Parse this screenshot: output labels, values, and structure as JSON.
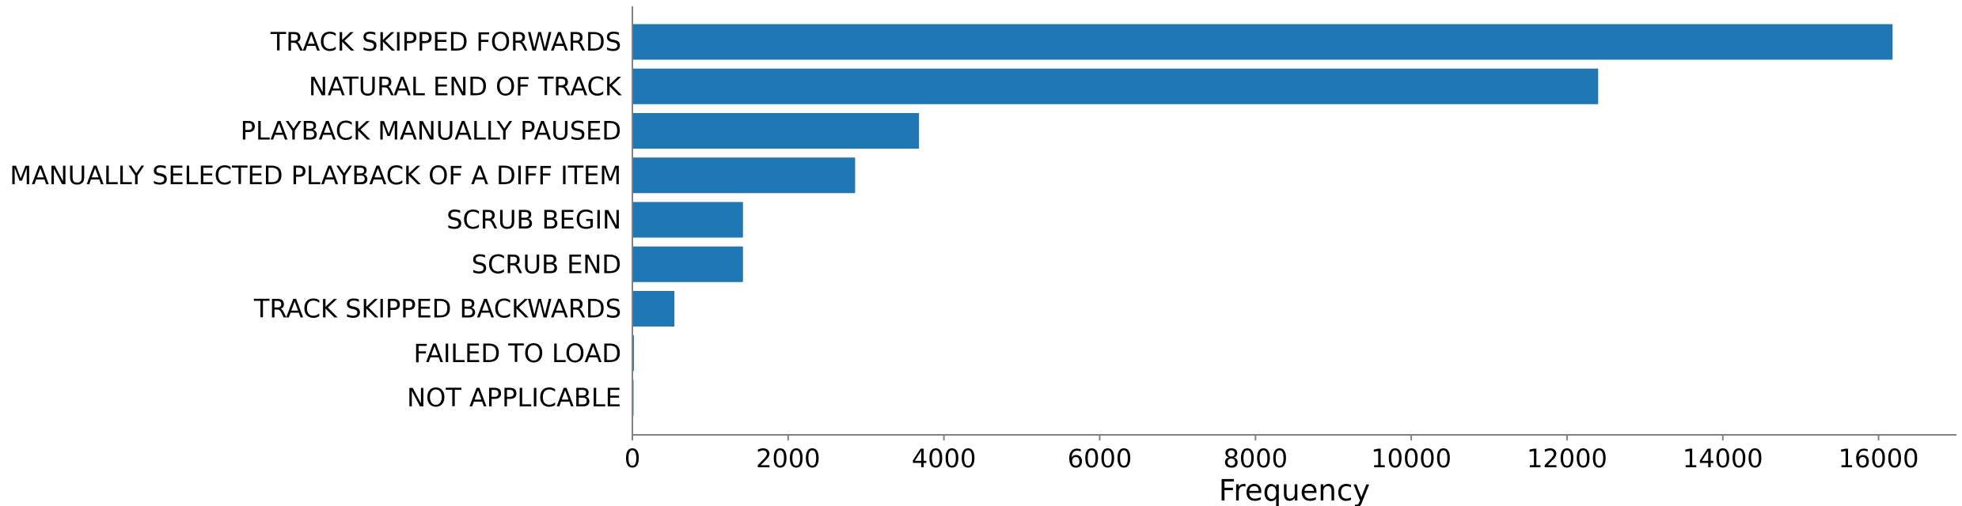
{
  "chart_data": {
    "type": "bar",
    "orientation": "horizontal",
    "categories": [
      "TRACK SKIPPED FORWARDS",
      "NATURAL END OF TRACK",
      "PLAYBACK MANUALLY PAUSED",
      "MANUALLY SELECTED PLAYBACK OF A DIFF ITEM",
      "SCRUB BEGIN",
      "SCRUB END",
      "TRACK SKIPPED BACKWARDS",
      "FAILED TO LOAD",
      "NOT APPLICABLE"
    ],
    "values": [
      16180,
      12400,
      3680,
      2860,
      1420,
      1420,
      540,
      20,
      10
    ],
    "title": "",
    "xlabel": "Frequency",
    "ylabel": "",
    "xlim": [
      0,
      17000
    ],
    "xticks": [
      0,
      2000,
      4000,
      6000,
      8000,
      10000,
      12000,
      14000,
      16000
    ],
    "grid": false,
    "bar_color": "#1f77b4",
    "axis_color": "#808080"
  }
}
